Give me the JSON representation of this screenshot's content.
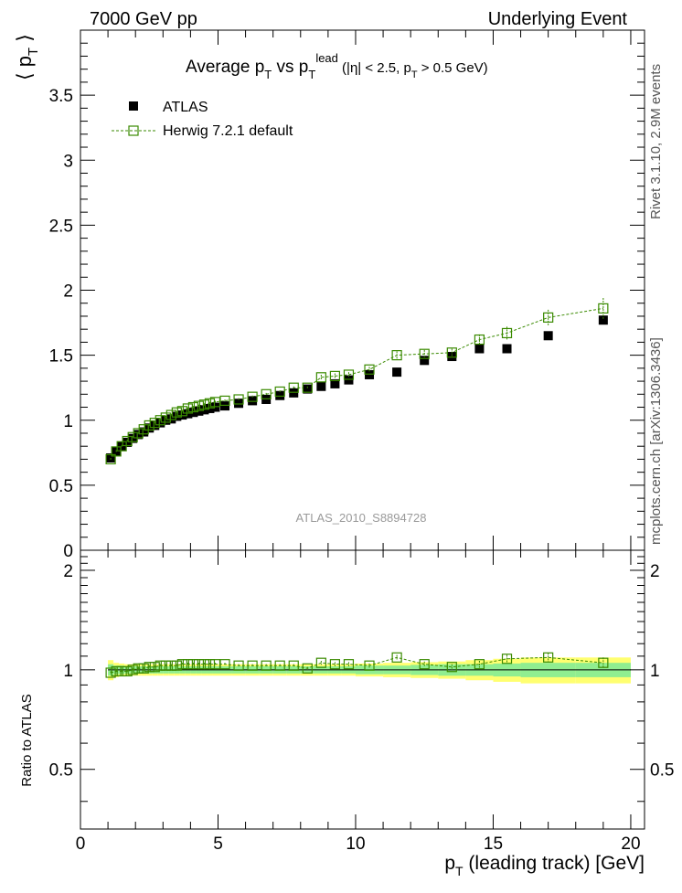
{
  "header": {
    "left": "7000 GeV pp",
    "right": "Underlying Event"
  },
  "side_labels": {
    "rivet": "Rivet 3.1.10, 2.9M events",
    "mcplots": "mcplots.cern.ch [arXiv:1306.3436]"
  },
  "colors": {
    "data": "#000000",
    "mc": "#3a8a00",
    "band_inner": "#90ee90",
    "band_outer": "#ffff70"
  },
  "chart_data": [
    {
      "type": "scatter",
      "title": "Average p_T vs p_T^lead (|η| < 2.5, p_T > 0.5 GeV)",
      "ylabel": "⟨ p_T ⟩",
      "xlim": [
        0,
        20.5
      ],
      "ylim": [
        0,
        4.0
      ],
      "yticks": [
        "0",
        "0.5",
        "1",
        "1.5",
        "2",
        "2.5",
        "3",
        "3.5"
      ],
      "watermark": "ATLAS_2010_S8894728",
      "legend_position": "top-left",
      "series": [
        {
          "name": "ATLAS",
          "marker": "filled-square",
          "x": [
            1.1,
            1.3,
            1.5,
            1.7,
            1.9,
            2.1,
            2.3,
            2.5,
            2.7,
            2.9,
            3.1,
            3.3,
            3.5,
            3.7,
            3.9,
            4.1,
            4.3,
            4.5,
            4.7,
            4.9,
            5.25,
            5.75,
            6.25,
            6.75,
            7.25,
            7.75,
            8.25,
            8.75,
            9.25,
            9.75,
            10.5,
            11.5,
            12.5,
            13.5,
            14.5,
            15.5,
            17.0,
            19.0
          ],
          "y": [
            0.71,
            0.76,
            0.8,
            0.83,
            0.86,
            0.89,
            0.91,
            0.94,
            0.96,
            0.98,
            1.0,
            1.01,
            1.03,
            1.04,
            1.05,
            1.06,
            1.07,
            1.08,
            1.09,
            1.1,
            1.11,
            1.13,
            1.15,
            1.16,
            1.19,
            1.21,
            1.24,
            1.26,
            1.28,
            1.31,
            1.35,
            1.37,
            1.46,
            1.49,
            1.55,
            1.55,
            1.65,
            1.77
          ]
        },
        {
          "name": "Herwig 7.2.1 default",
          "marker": "open-square",
          "x": [
            1.1,
            1.3,
            1.5,
            1.7,
            1.9,
            2.1,
            2.3,
            2.5,
            2.7,
            2.9,
            3.1,
            3.3,
            3.5,
            3.7,
            3.9,
            4.1,
            4.3,
            4.5,
            4.7,
            4.9,
            5.25,
            5.75,
            6.25,
            6.75,
            7.25,
            7.75,
            8.25,
            8.75,
            9.25,
            9.75,
            10.5,
            11.5,
            12.5,
            13.5,
            14.5,
            15.5,
            17.0,
            19.0
          ],
          "y": [
            0.7,
            0.76,
            0.8,
            0.84,
            0.87,
            0.9,
            0.93,
            0.96,
            0.98,
            1.0,
            1.02,
            1.04,
            1.06,
            1.07,
            1.09,
            1.1,
            1.11,
            1.12,
            1.13,
            1.14,
            1.15,
            1.16,
            1.18,
            1.2,
            1.22,
            1.25,
            1.25,
            1.33,
            1.34,
            1.35,
            1.39,
            1.5,
            1.51,
            1.52,
            1.62,
            1.67,
            1.79,
            1.86
          ],
          "yerr": [
            0.01,
            0.01,
            0.01,
            0.01,
            0.01,
            0.01,
            0.01,
            0.01,
            0.01,
            0.01,
            0.01,
            0.01,
            0.01,
            0.01,
            0.01,
            0.01,
            0.01,
            0.01,
            0.01,
            0.01,
            0.01,
            0.01,
            0.01,
            0.01,
            0.01,
            0.01,
            0.01,
            0.02,
            0.02,
            0.02,
            0.02,
            0.03,
            0.03,
            0.03,
            0.04,
            0.05,
            0.06,
            0.08
          ]
        }
      ]
    },
    {
      "type": "scatter",
      "ylabel": "Ratio to ATLAS",
      "xlabel": "p_T (leading track) [GeV]",
      "xlim": [
        0,
        20.5
      ],
      "ylim": [
        0.33,
        2.3
      ],
      "xticks": [
        "0",
        "5",
        "10",
        "15",
        "20"
      ],
      "yticks": [
        "0.5",
        "1",
        "2"
      ],
      "bands": {
        "x_edges": [
          1.0,
          1.2,
          1.4,
          1.6,
          1.8,
          2.0,
          2.2,
          2.4,
          2.6,
          2.8,
          3.0,
          3.2,
          3.4,
          3.6,
          3.8,
          4.0,
          4.2,
          4.4,
          4.6,
          4.8,
          5.0,
          5.5,
          6.0,
          6.5,
          7.0,
          7.5,
          8.0,
          8.5,
          9.0,
          9.5,
          10.0,
          11.0,
          12.0,
          13.0,
          14.0,
          15.0,
          16.0,
          18.0,
          20.0
        ],
        "inner": [
          0.04,
          0.03,
          0.03,
          0.025,
          0.025,
          0.025,
          0.025,
          0.025,
          0.025,
          0.025,
          0.025,
          0.025,
          0.025,
          0.025,
          0.025,
          0.025,
          0.025,
          0.025,
          0.025,
          0.025,
          0.025,
          0.025,
          0.025,
          0.025,
          0.025,
          0.025,
          0.025,
          0.025,
          0.025,
          0.025,
          0.03,
          0.03,
          0.035,
          0.04,
          0.04,
          0.045,
          0.05,
          0.05
        ],
        "outer": [
          0.07,
          0.05,
          0.045,
          0.04,
          0.04,
          0.04,
          0.04,
          0.04,
          0.04,
          0.04,
          0.04,
          0.04,
          0.04,
          0.04,
          0.04,
          0.04,
          0.04,
          0.04,
          0.04,
          0.04,
          0.04,
          0.04,
          0.04,
          0.04,
          0.04,
          0.04,
          0.04,
          0.04,
          0.04,
          0.04,
          0.045,
          0.05,
          0.055,
          0.06,
          0.07,
          0.08,
          0.09,
          0.09
        ]
      },
      "series": [
        {
          "name": "Herwig 7.2.1 default",
          "marker": "open-square",
          "x": [
            1.1,
            1.3,
            1.5,
            1.7,
            1.9,
            2.1,
            2.3,
            2.5,
            2.7,
            2.9,
            3.1,
            3.3,
            3.5,
            3.7,
            3.9,
            4.1,
            4.3,
            4.5,
            4.7,
            4.9,
            5.25,
            5.75,
            6.25,
            6.75,
            7.25,
            7.75,
            8.25,
            8.75,
            9.25,
            9.75,
            10.5,
            11.5,
            12.5,
            13.5,
            14.5,
            15.5,
            17.0,
            19.0
          ],
          "y": [
            0.98,
            0.99,
            0.99,
            0.99,
            1.0,
            1.01,
            1.01,
            1.02,
            1.02,
            1.03,
            1.03,
            1.03,
            1.03,
            1.04,
            1.04,
            1.04,
            1.04,
            1.04,
            1.04,
            1.04,
            1.04,
            1.03,
            1.03,
            1.03,
            1.03,
            1.03,
            1.01,
            1.05,
            1.04,
            1.04,
            1.03,
            1.09,
            1.04,
            1.02,
            1.04,
            1.08,
            1.09,
            1.05
          ],
          "yerr": [
            0.01,
            0.01,
            0.01,
            0.01,
            0.01,
            0.01,
            0.01,
            0.01,
            0.01,
            0.01,
            0.01,
            0.01,
            0.01,
            0.01,
            0.01,
            0.01,
            0.01,
            0.01,
            0.01,
            0.01,
            0.01,
            0.01,
            0.01,
            0.01,
            0.01,
            0.01,
            0.01,
            0.015,
            0.015,
            0.015,
            0.015,
            0.02,
            0.02,
            0.02,
            0.025,
            0.03,
            0.035,
            0.04
          ]
        }
      ]
    }
  ]
}
